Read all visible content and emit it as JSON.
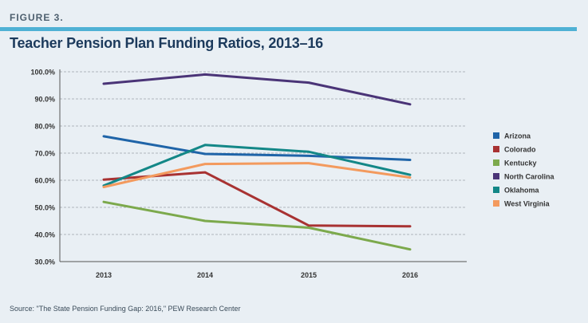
{
  "figure_label": "FIGURE 3.",
  "source_text": "Source: \"The State Pension Funding Gap: 2016,\" PEW Research Center",
  "chart_data": {
    "type": "line",
    "title": "Teacher Pension Plan Funding Ratios, 2013–16",
    "x": [
      "2013",
      "2014",
      "2015",
      "2016"
    ],
    "y_ticks": [
      "30.0%",
      "40.0%",
      "50.0%",
      "60.0%",
      "70.0%",
      "80.0%",
      "90.0%",
      "100.0%"
    ],
    "ylim": [
      30,
      100
    ],
    "grid": true,
    "legend_position": "right",
    "series": [
      {
        "name": "Arizona",
        "color": "#1f64a8",
        "values": [
          76.2,
          69.7,
          69.0,
          67.5
        ]
      },
      {
        "name": "Colorado",
        "color": "#a83232",
        "values": [
          60.2,
          62.9,
          43.3,
          43.0
        ]
      },
      {
        "name": "Kentucky",
        "color": "#7ca94c",
        "values": [
          52.0,
          45.0,
          42.5,
          34.5
        ]
      },
      {
        "name": "North Carolina",
        "color": "#4a3477",
        "values": [
          95.6,
          99.0,
          96.0,
          88.0
        ]
      },
      {
        "name": "Oklahoma",
        "color": "#138787",
        "values": [
          58.0,
          73.0,
          70.5,
          62.0
        ]
      },
      {
        "name": "West Virginia",
        "color": "#f39a5e",
        "values": [
          57.5,
          66.0,
          66.3,
          61.0
        ]
      }
    ]
  }
}
